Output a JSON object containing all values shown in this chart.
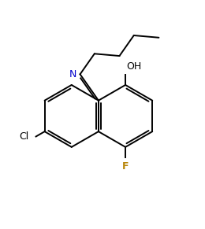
{
  "background_color": "#ffffff",
  "line_color": "#000000",
  "label_color_N": "#0000cc",
  "label_color_Cl": "#000000",
  "label_color_F": "#b8860b",
  "label_color_OH": "#000000",
  "figsize": [
    2.6,
    2.91
  ],
  "dpi": 100,
  "xlim": [
    0,
    10
  ],
  "ylim": [
    0,
    11
  ],
  "lw": 1.4,
  "ring_r": 1.55
}
